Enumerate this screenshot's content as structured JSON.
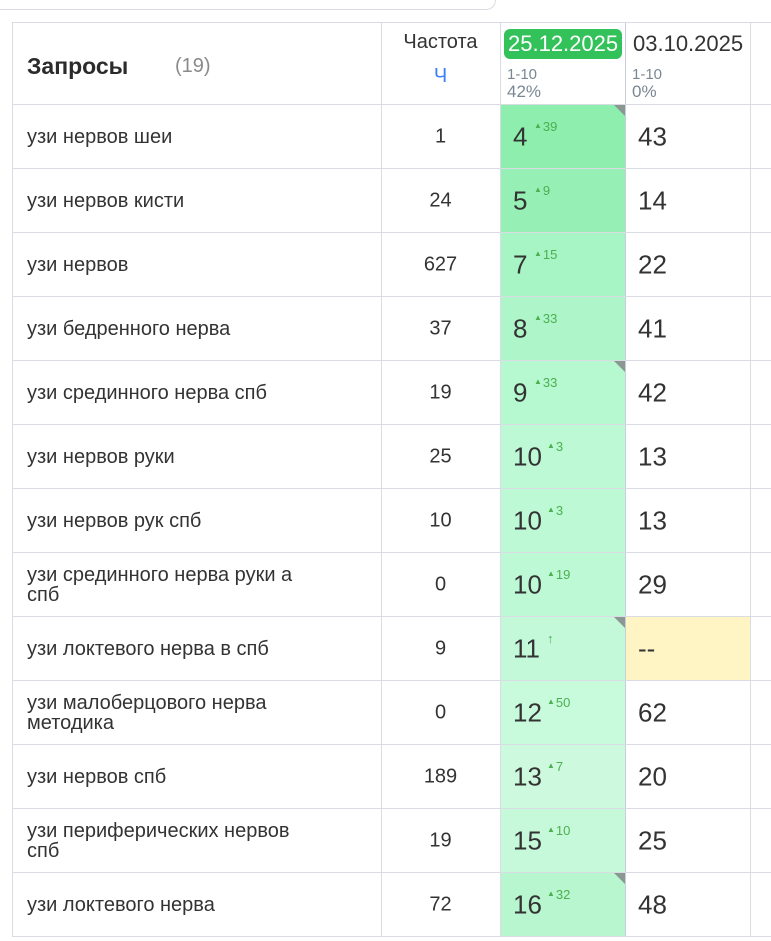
{
  "header": {
    "title": "Запросы",
    "count": "(19)",
    "freq_label": "Частота",
    "freq_sub": "Ч",
    "dates": [
      {
        "label": "25.12.2025",
        "range": "1-10",
        "pct": "42%",
        "active": true
      },
      {
        "label": "03.10.2025",
        "range": "1-10",
        "pct": "0%",
        "active": false
      }
    ]
  },
  "colors": {
    "active_date_bg": "#33c15a",
    "delta_up": "#4caf50",
    "missing_bg": "#fff5c4"
  },
  "rows": [
    {
      "query": "узи нервов шеи",
      "freq": "1",
      "pos": "4",
      "delta": "39",
      "prev": "43",
      "bg": "#8deead",
      "flag": true
    },
    {
      "query": "узи нервов кисти",
      "freq": "24",
      "pos": "5",
      "delta": "9",
      "prev": "14",
      "bg": "#96f0b6",
      "flag": false
    },
    {
      "query": "узи нервов",
      "freq": "627",
      "pos": "7",
      "delta": "15",
      "prev": "22",
      "bg": "#a7f4c4",
      "flag": false
    },
    {
      "query": "узи бедренного нерва",
      "freq": "37",
      "pos": "8",
      "delta": "33",
      "prev": "41",
      "bg": "#aef6ca",
      "flag": false
    },
    {
      "query": "узи срединного нерва спб",
      "freq": "19",
      "pos": "9",
      "delta": "33",
      "prev": "42",
      "bg": "#b6f8d0",
      "flag": true
    },
    {
      "query": "узи нервов руки",
      "freq": "25",
      "pos": "10",
      "delta": "3",
      "prev": "13",
      "bg": "#bdf9d5",
      "flag": false
    },
    {
      "query": "узи нервов рук спб",
      "freq": "10",
      "pos": "10",
      "delta": "3",
      "prev": "13",
      "bg": "#bdf9d5",
      "flag": false
    },
    {
      "query": "узи срединного нерва руки а спб",
      "freq": "0",
      "pos": "10",
      "delta": "19",
      "prev": "29",
      "bg": "#bdf9d5",
      "flag": false
    },
    {
      "query": "узи локтевого нерва в спб",
      "freq": "9",
      "pos": "11",
      "delta": "↑",
      "prev": "--",
      "bg": "#c3f9d9",
      "flag": true,
      "prev_missing": true
    },
    {
      "query": "узи малоберцового нерва методика",
      "freq": "0",
      "pos": "12",
      "delta": "50",
      "prev": "62",
      "bg": "#c8fadc",
      "flag": false
    },
    {
      "query": "узи нервов спб",
      "freq": "189",
      "pos": "13",
      "delta": "7",
      "prev": "20",
      "bg": "#cdfadf",
      "flag": false
    },
    {
      "query": "узи периферических нервов спб",
      "freq": "19",
      "pos": "15",
      "delta": "10",
      "prev": "25",
      "bg": "#c6f9da",
      "flag": false
    },
    {
      "query": "узи локтевого нерва",
      "freq": "72",
      "pos": "16",
      "delta": "32",
      "prev": "48",
      "bg": "#b8f6cf",
      "flag": true
    }
  ]
}
